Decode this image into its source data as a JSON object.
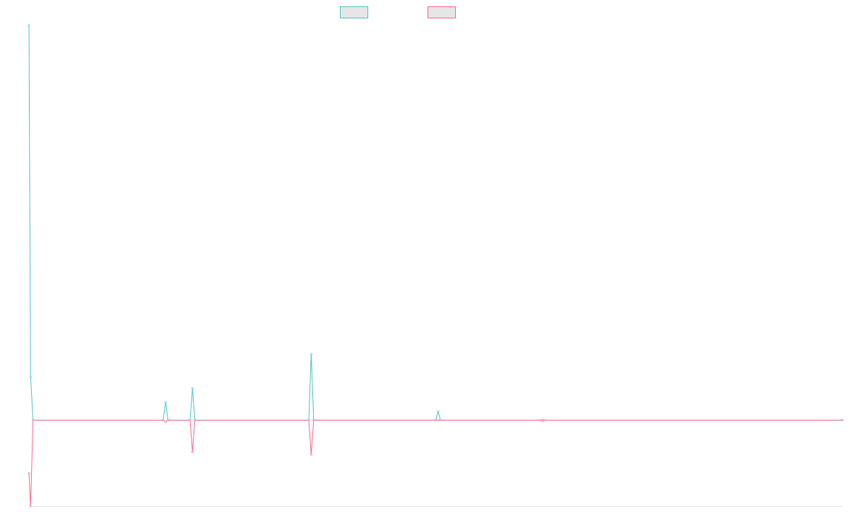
{
  "chart_data": {
    "type": "line",
    "title": "",
    "xlabel": "",
    "ylabel": "",
    "xlim": [
      0,
      100
    ],
    "ylim": [
      -100,
      460
    ],
    "grid": false,
    "legend": "top-center",
    "x": [
      0,
      0.2,
      0.5,
      16.5,
      16.8,
      17.1,
      19.8,
      20.1,
      20.4,
      34.4,
      34.7,
      35.0,
      50.0,
      50.3,
      50.6,
      62.8,
      63.1,
      63.4,
      100
    ],
    "series": [
      {
        "color": "#4bc0c0",
        "values": [
          460,
          50,
          0,
          0,
          21,
          0,
          0,
          37,
          0,
          0,
          77,
          0,
          0,
          10,
          0,
          0,
          0,
          0,
          0
        ]
      },
      {
        "color": "#ff6384",
        "values": [
          -62,
          -100,
          0,
          0,
          -2,
          0,
          0,
          -37,
          0,
          0,
          -40,
          0,
          0,
          0,
          0,
          0,
          -1,
          0,
          0
        ]
      }
    ]
  }
}
